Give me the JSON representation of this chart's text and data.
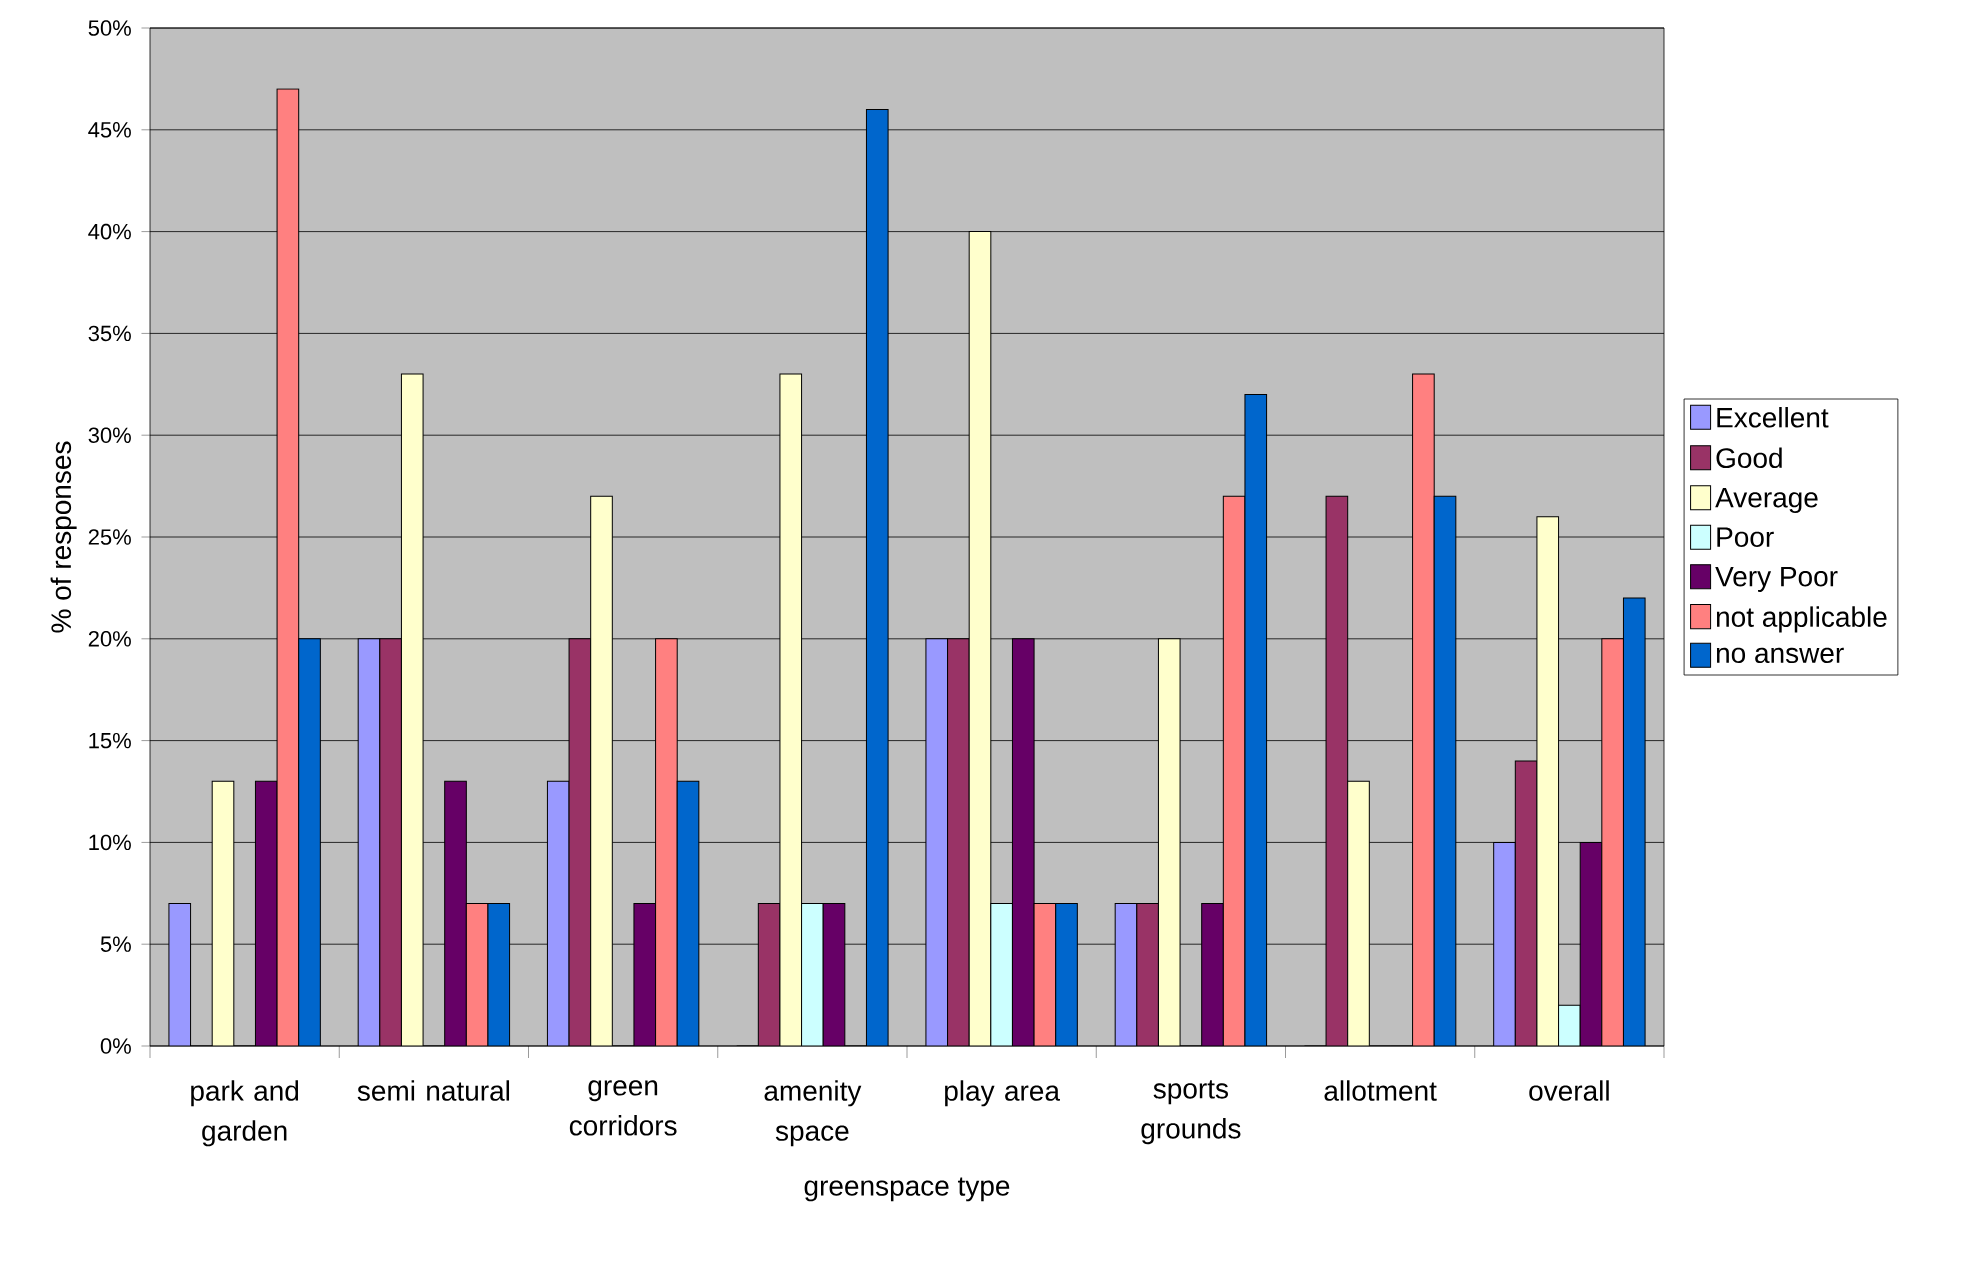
{
  "chart_data": {
    "type": "bar",
    "xlabel": "greenspace type",
    "ylabel": "% of responses",
    "categories": [
      "park and garden",
      "semi natural",
      "green corridors",
      "amenity space",
      "play area",
      "sports grounds",
      "allotment",
      "overall"
    ],
    "series": [
      {
        "name": "Excellent",
        "color": "#9999ff",
        "values": [
          7,
          20,
          13,
          0,
          20,
          7,
          0,
          10
        ]
      },
      {
        "name": "Good",
        "color": "#993366",
        "values": [
          0,
          20,
          20,
          7,
          20,
          7,
          27,
          14
        ]
      },
      {
        "name": "Average",
        "color": "#ffffcc",
        "values": [
          13,
          33,
          27,
          33,
          40,
          20,
          13,
          26
        ]
      },
      {
        "name": "Poor",
        "color": "#ccffff",
        "values": [
          0,
          0,
          0,
          7,
          7,
          0,
          0,
          2
        ]
      },
      {
        "name": "Very Poor",
        "color": "#660066",
        "values": [
          13,
          13,
          7,
          7,
          20,
          7,
          0,
          10
        ]
      },
      {
        "name": "not applicable",
        "color": "#ff8080",
        "values": [
          47,
          7,
          20,
          0,
          7,
          27,
          33,
          20
        ]
      },
      {
        "name": "no answer",
        "color": "#0066cc",
        "values": [
          20,
          7,
          13,
          46,
          7,
          32,
          27,
          22
        ]
      }
    ],
    "ylim": [
      0,
      50
    ],
    "yticks": [
      {
        "value": 0,
        "label": "0%"
      },
      {
        "value": 5,
        "label": "5%"
      },
      {
        "value": 10,
        "label": "10%"
      },
      {
        "value": 15,
        "label": "15%"
      },
      {
        "value": 20,
        "label": "20%"
      },
      {
        "value": 25,
        "label": "25%"
      },
      {
        "value": 30,
        "label": "30%"
      },
      {
        "value": 35,
        "label": "35%"
      },
      {
        "value": 40,
        "label": "40%"
      },
      {
        "value": 45,
        "label": "45%"
      },
      {
        "value": 50,
        "label": "50%"
      }
    ],
    "grid": "y",
    "legend": "right"
  }
}
